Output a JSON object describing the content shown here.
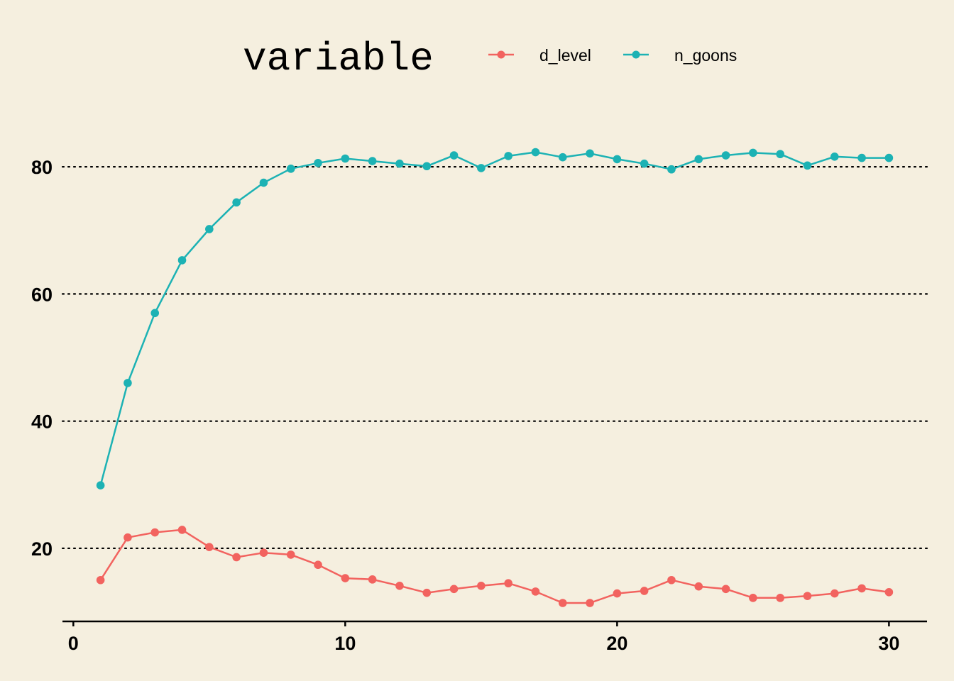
{
  "chart_data": {
    "type": "line",
    "legend": {
      "title": "variable",
      "position": "top",
      "entries": [
        "d_level",
        "n_goons"
      ]
    },
    "x_ticks": [
      "0",
      "10",
      "20",
      "30"
    ],
    "y_ticks": [
      "20",
      "40",
      "60",
      "80"
    ],
    "xlim": [
      -0.4,
      31.4
    ],
    "ylim": [
      8.5,
      89.5
    ],
    "grid": {
      "horizontal": "dotted",
      "vertical": false
    },
    "series": [
      {
        "name": "d_level",
        "color": "#F2635F",
        "x": [
          1,
          2,
          3,
          4,
          5,
          6,
          7,
          8,
          9,
          10,
          11,
          12,
          13,
          14,
          15,
          16,
          17,
          18,
          19,
          20,
          21,
          22,
          23,
          24,
          25,
          26,
          27,
          28,
          29,
          30
        ],
        "y": [
          15.0,
          21.7,
          22.5,
          22.9,
          20.2,
          18.6,
          19.3,
          19.0,
          17.4,
          15.3,
          15.1,
          14.1,
          13.0,
          13.6,
          14.1,
          14.5,
          13.2,
          11.4,
          11.4,
          12.9,
          13.3,
          15.0,
          14.0,
          13.6,
          12.2,
          12.2,
          12.5,
          12.9,
          13.7,
          13.1
        ]
      },
      {
        "name": "n_goons",
        "color": "#1CB2B4",
        "x": [
          1,
          2,
          3,
          4,
          5,
          6,
          7,
          8,
          9,
          10,
          11,
          12,
          13,
          14,
          15,
          16,
          17,
          18,
          19,
          20,
          21,
          22,
          23,
          24,
          25,
          26,
          27,
          28,
          29,
          30
        ],
        "y": [
          29.9,
          46.0,
          57.0,
          65.3,
          70.2,
          74.4,
          77.5,
          79.7,
          80.6,
          81.3,
          80.9,
          80.5,
          80.1,
          81.8,
          79.8,
          81.7,
          82.3,
          81.5,
          82.1,
          81.2,
          80.5,
          79.6,
          81.2,
          81.8,
          82.2,
          82.0,
          80.2,
          81.6,
          81.4,
          81.4
        ]
      }
    ]
  }
}
